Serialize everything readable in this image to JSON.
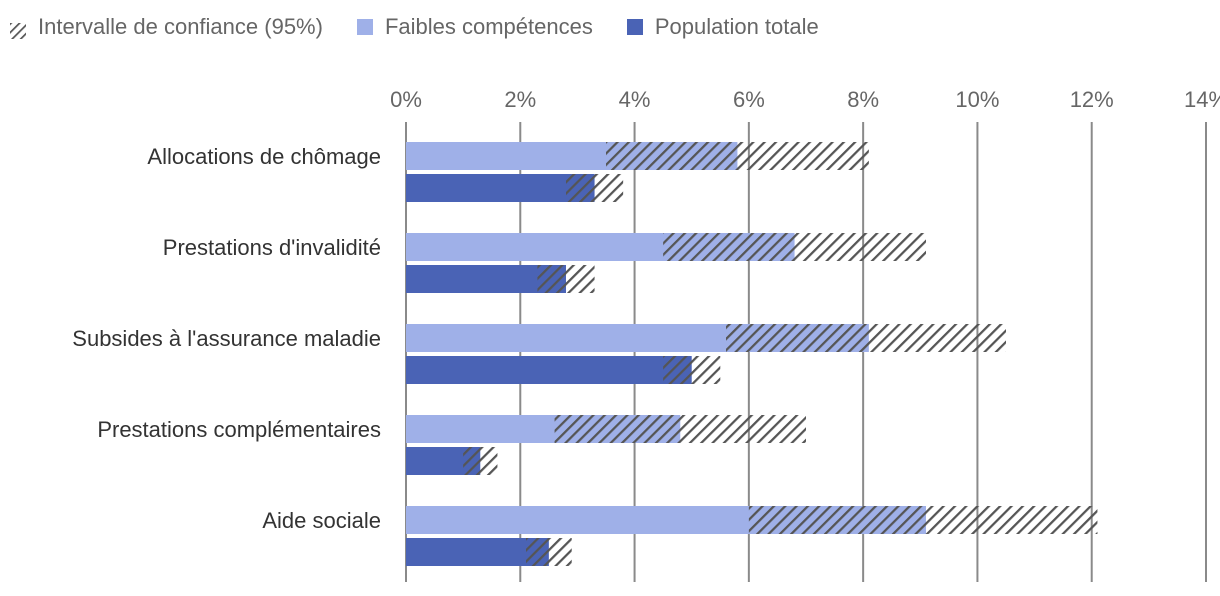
{
  "chart_data": {
    "type": "bar",
    "orientation": "horizontal",
    "title": "",
    "xlabel": "",
    "ylabel": "",
    "xlim": [
      0,
      14
    ],
    "xticks": [
      0,
      2,
      4,
      6,
      8,
      10,
      12,
      14
    ],
    "tick_suffix": "%",
    "grid": true,
    "legend_position": "top-left",
    "categories": [
      "Allocations de chômage",
      "Prestations d'invalidité",
      "Subsides à l'assurance maladie",
      "Prestations complémentaires",
      "Aide sociale"
    ],
    "legend": [
      {
        "key": "ci",
        "label": "Intervalle de confiance (95%)"
      },
      {
        "key": "low",
        "label": "Faibles compétences"
      },
      {
        "key": "total",
        "label": "Population totale"
      }
    ],
    "series": [
      {
        "name": "Faibles compétences",
        "key": "low",
        "color": "#9fb0e8",
        "values": [
          5.8,
          6.8,
          8.1,
          4.8,
          9.1
        ],
        "ci": [
          [
            3.5,
            8.1
          ],
          [
            4.5,
            9.1
          ],
          [
            5.6,
            10.5
          ],
          [
            2.6,
            7.0
          ],
          [
            6.0,
            12.1
          ]
        ]
      },
      {
        "name": "Population totale",
        "key": "total",
        "color": "#4a63b5",
        "values": [
          3.3,
          2.8,
          5.0,
          1.3,
          2.5
        ],
        "ci": [
          [
            2.8,
            3.8
          ],
          [
            2.3,
            3.3
          ],
          [
            4.5,
            5.5
          ],
          [
            1.0,
            1.6
          ],
          [
            2.1,
            2.9
          ]
        ]
      }
    ],
    "ci_color": "#555555"
  }
}
